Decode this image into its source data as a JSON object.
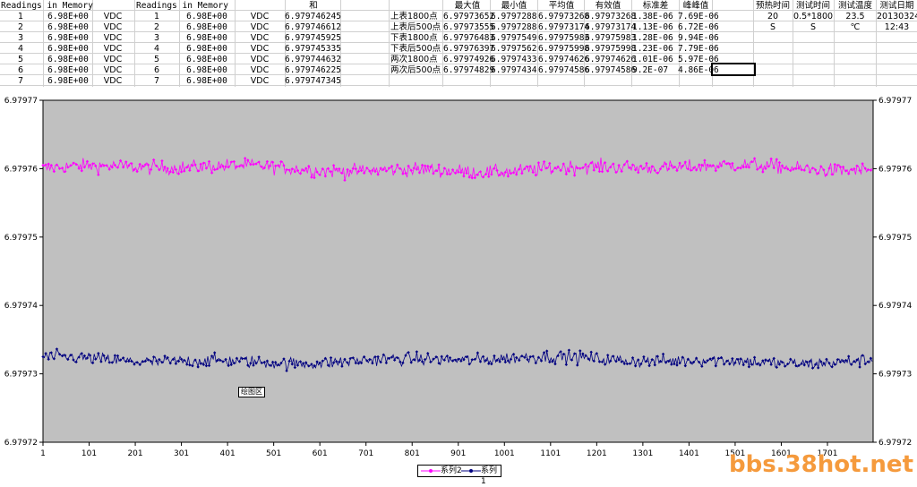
{
  "sheet": {
    "headers": {
      "left_title": "Readings in Memory",
      "mid_title": "Readings in Memory",
      "sum": "和",
      "max": "最大值",
      "min": "最小值",
      "avg": "平均值",
      "eff": "有效值",
      "std": "标准差",
      "pp": "峰峰值",
      "preheat": "预热时间",
      "test_time": "测试时间",
      "temp": "测试温度",
      "date": "测试日期"
    },
    "rows": [
      {
        "n": "1",
        "v1": "6.98E+00",
        "u1": "VDC",
        "n2": "1",
        "v2": "6.98E+00",
        "u2": "VDC",
        "sum": "6.979746245"
      },
      {
        "n": "2",
        "v1": "6.98E+00",
        "u1": "VDC",
        "n2": "2",
        "v2": "6.98E+00",
        "u2": "VDC",
        "sum": "6.979746612"
      },
      {
        "n": "3",
        "v1": "6.98E+00",
        "u1": "VDC",
        "n2": "3",
        "v2": "6.98E+00",
        "u2": "VDC",
        "sum": "6.979745925"
      },
      {
        "n": "4",
        "v1": "6.98E+00",
        "u1": "VDC",
        "n2": "4",
        "v2": "6.98E+00",
        "u2": "VDC",
        "sum": "6.979745335"
      },
      {
        "n": "5",
        "v1": "6.98E+00",
        "u1": "VDC",
        "n2": "5",
        "v2": "6.98E+00",
        "u2": "VDC",
        "sum": "6.979744632"
      },
      {
        "n": "6",
        "v1": "6.98E+00",
        "u1": "VDC",
        "n2": "6",
        "v2": "6.98E+00",
        "u2": "VDC",
        "sum": "6.979746225"
      },
      {
        "n": "7",
        "v1": "6.98E+00",
        "u1": "VDC",
        "n2": "7",
        "v2": "6.98E+00",
        "u2": "VDC",
        "sum": "6.979747345"
      }
    ],
    "stats": [
      {
        "label": "上表1800点",
        "max": "6.97973652",
        "min": "6.9797288",
        "avg": "6.97973268",
        "eff": "6.97973268",
        "std": "1.38E-06",
        "pp": "7.69E-06"
      },
      {
        "label": "上表后500点",
        "max": "6.97973555",
        "min": "6.9797288",
        "avg": "6.97973174",
        "eff": "6.97973174",
        "std": "1.13E-06",
        "pp": "6.72E-06"
      },
      {
        "label": "下表1800点",
        "max": "6.97976483",
        "min": "6.9797549",
        "avg": "6.97975983",
        "eff": "6.97975983",
        "std": "1.28E-06",
        "pp": "9.94E-06"
      },
      {
        "label": "下表后500点",
        "max": "6.97976397",
        "min": "6.9797562",
        "avg": "6.97975998",
        "eff": "6.97975998",
        "std": "1.23E-06",
        "pp": "7.79E-06"
      },
      {
        "label": "两次1800点",
        "max": "6.97974926",
        "min": "6.9797433",
        "avg": "6.97974626",
        "eff": "6.97974626",
        "std": "1.01E-06",
        "pp": "5.97E-06"
      },
      {
        "label": "两次后500点",
        "max": "6.97974829",
        "min": "6.9797434",
        "avg": "6.97974586",
        "eff": "6.97974586",
        "std": "9.2E-07",
        "pp": "4.86E-06"
      }
    ],
    "info": {
      "preheat": "20",
      "test_time": "0.5*1800",
      "temp": "23.5",
      "date": "20130324",
      "preheat_unit": "S",
      "test_time_unit": "S",
      "temp_unit": "℃",
      "time": "12:43"
    }
  },
  "chart_data": {
    "type": "line",
    "x_ticks": [
      "1",
      "101",
      "201",
      "301",
      "401",
      "501",
      "601",
      "701",
      "801",
      "901",
      "1001",
      "1101",
      "1201",
      "1301",
      "1401",
      "1501",
      "1601",
      "1701"
    ],
    "y_ticks": [
      "6.97977",
      "6.97976",
      "6.97975",
      "6.97974",
      "6.97973",
      "6.97972"
    ],
    "ylim": [
      6.97972,
      6.97977
    ],
    "xlim": [
      1,
      1800
    ],
    "n_points": 1800,
    "series": [
      {
        "name": "系列2",
        "color": "#ff00ff",
        "mean": 6.97976,
        "spread": 1.2e-06
      },
      {
        "name": "系列1",
        "color": "#000080",
        "mean": 6.979732,
        "spread": 1.1e-06
      }
    ],
    "plot_label": "绘图区",
    "grid": false
  },
  "watermark": "bbs.38hot.net"
}
